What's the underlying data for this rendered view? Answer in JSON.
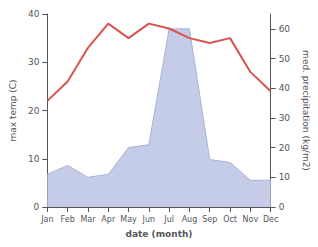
{
  "chart_data": {
    "type": "line",
    "categories": [
      "Jan",
      "Feb",
      "Mar",
      "Apr",
      "May",
      "Jun",
      "Jul",
      "Aug",
      "Sep",
      "Oct",
      "Nov",
      "Dec"
    ],
    "xlabel": "date (month)",
    "ylabel": "max temp (C)",
    "y2label": "med. precipitation (kg/m2)",
    "series": [
      {
        "type": "area",
        "axis": "y2",
        "color": "#c5cce8",
        "values": [
          11,
          14,
          10,
          11,
          20,
          21,
          60,
          60,
          16,
          15,
          9,
          9
        ]
      },
      {
        "type": "line",
        "axis": "y2",
        "color": "#aab4d8",
        "values": [
          11,
          14,
          10,
          11,
          20,
          21,
          60,
          60,
          16,
          15,
          9,
          9
        ]
      },
      {
        "type": "line",
        "color": "#d9534f",
        "values": [
          22,
          26,
          33,
          38,
          35,
          38,
          37,
          35,
          34,
          35,
          28,
          24
        ]
      }
    ],
    "ylim": [
      0,
      40
    ],
    "yticks": [
      0,
      10,
      20,
      30,
      40
    ],
    "y2lim": [
      0,
      65
    ],
    "y2ticks": [
      0,
      10,
      20,
      30,
      40,
      50,
      60
    ],
    "grid": false
  }
}
